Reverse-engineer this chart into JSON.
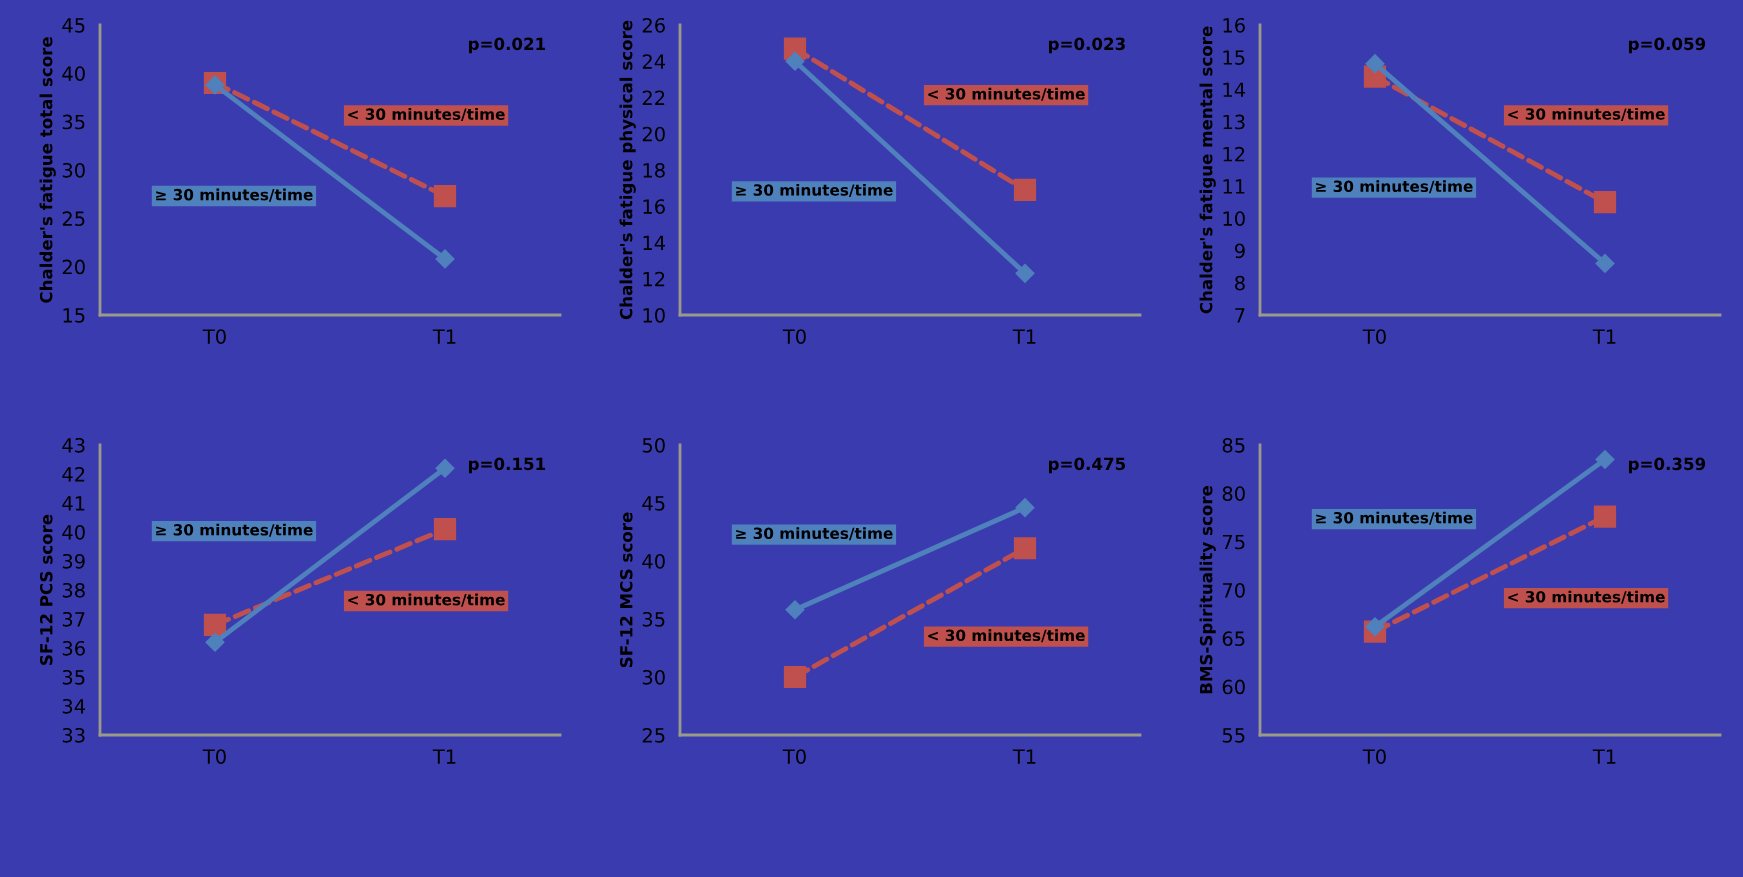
{
  "chart_data": [
    {
      "type": "line",
      "categories": [
        "T0",
        "T1"
      ],
      "ylabel": "Chalder's fatigue total score",
      "ylim": [
        15,
        45
      ],
      "yticks": [
        15,
        20,
        25,
        30,
        35,
        40,
        45
      ],
      "annotations": [
        "p=0.021"
      ],
      "legend": false,
      "grid": false,
      "series": [
        {
          "name": "≥ 30 minutes/time",
          "color": "#4f81bd",
          "values": [
            38.8,
            20.8
          ],
          "marker": "diamond",
          "line_style": "solid"
        },
        {
          "name": "< 30 minutes/time",
          "color": "#c0504d",
          "values": [
            39.0,
            27.3
          ],
          "marker": "square",
          "line_style": "dashed"
        }
      ]
    },
    {
      "type": "line",
      "categories": [
        "T0",
        "T1"
      ],
      "ylabel": "Chalder's fatigue physical score",
      "ylim": [
        10,
        26
      ],
      "yticks": [
        10,
        12,
        14,
        16,
        18,
        20,
        22,
        24,
        26
      ],
      "annotations": [
        "p=0.023"
      ],
      "legend": false,
      "grid": false,
      "series": [
        {
          "name": "≥ 30 minutes/time",
          "color": "#4f81bd",
          "values": [
            24.0,
            12.3
          ],
          "marker": "diamond",
          "line_style": "solid"
        },
        {
          "name": "< 30 minutes/time",
          "color": "#c0504d",
          "values": [
            24.7,
            16.9
          ],
          "marker": "square",
          "line_style": "dashed"
        }
      ]
    },
    {
      "type": "line",
      "categories": [
        "T0",
        "T1"
      ],
      "ylabel": "Chalder's fatigue mental score",
      "ylim": [
        7,
        16
      ],
      "yticks": [
        7,
        8,
        9,
        10,
        11,
        12,
        13,
        14,
        15,
        16
      ],
      "annotations": [
        "p=0.059"
      ],
      "legend": false,
      "grid": false,
      "series": [
        {
          "name": "≥ 30 minutes/time",
          "color": "#4f81bd",
          "values": [
            14.8,
            8.6
          ],
          "marker": "diamond",
          "line_style": "solid"
        },
        {
          "name": "< 30 minutes/time",
          "color": "#c0504d",
          "values": [
            14.4,
            10.5
          ],
          "marker": "square",
          "line_style": "dashed"
        }
      ]
    },
    {
      "type": "line",
      "categories": [
        "T0",
        "T1"
      ],
      "ylabel": "SF-12 PCS score",
      "ylim": [
        33,
        43
      ],
      "yticks": [
        33,
        34,
        35,
        36,
        37,
        38,
        39,
        40,
        41,
        42,
        43
      ],
      "annotations": [
        "p=0.151"
      ],
      "legend": false,
      "grid": false,
      "series": [
        {
          "name": "≥ 30 minutes/time",
          "color": "#4f81bd",
          "values": [
            36.2,
            42.2
          ],
          "marker": "diamond",
          "line_style": "solid"
        },
        {
          "name": "< 30 minutes/time",
          "color": "#c0504d",
          "values": [
            36.8,
            40.1
          ],
          "marker": "square",
          "line_style": "dashed"
        }
      ]
    },
    {
      "type": "line",
      "categories": [
        "T0",
        "T1"
      ],
      "ylabel": "SF-12 MCS score",
      "ylim": [
        25,
        50
      ],
      "yticks": [
        25,
        30,
        35,
        40,
        45,
        50
      ],
      "annotations": [
        "p=0.475"
      ],
      "legend": false,
      "grid": false,
      "series": [
        {
          "name": "≥ 30 minutes/time",
          "color": "#4f81bd",
          "values": [
            35.8,
            44.6
          ],
          "marker": "diamond",
          "line_style": "solid"
        },
        {
          "name": "< 30 minutes/time",
          "color": "#c0504d",
          "values": [
            30.0,
            41.1
          ],
          "marker": "square",
          "line_style": "dashed"
        }
      ]
    },
    {
      "type": "line",
      "categories": [
        "T0",
        "T1"
      ],
      "ylabel": "BMS-Spirituality score",
      "ylim": [
        55,
        85
      ],
      "yticks": [
        55,
        60,
        65,
        70,
        75,
        80,
        85
      ],
      "annotations": [
        "p=0.359"
      ],
      "legend": false,
      "grid": false,
      "series": [
        {
          "name": "≥ 30 minutes/time",
          "color": "#4f81bd",
          "values": [
            66.2,
            83.5
          ],
          "marker": "diamond",
          "line_style": "solid"
        },
        {
          "name": "< 30 minutes/time",
          "color": "#c0504d",
          "values": [
            65.7,
            77.6
          ],
          "marker": "square",
          "line_style": "dashed"
        }
      ]
    }
  ]
}
